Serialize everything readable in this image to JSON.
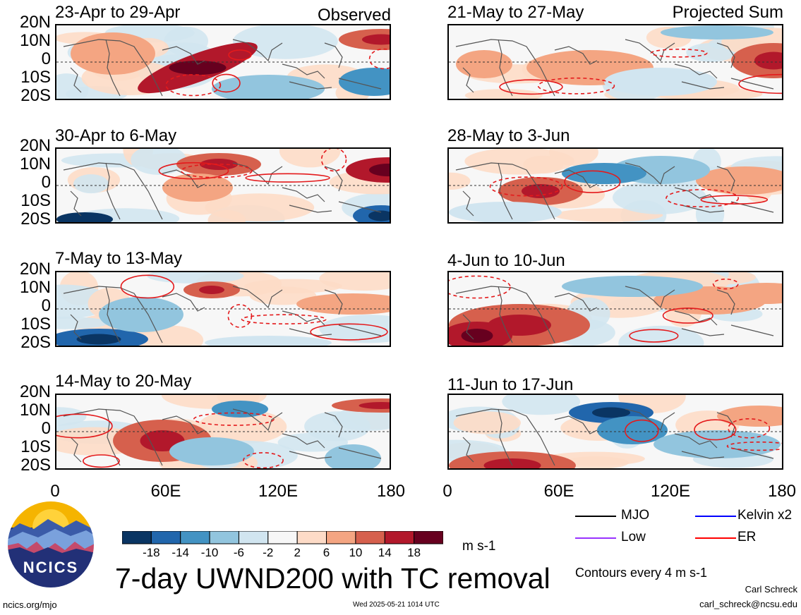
{
  "chart_data": {
    "type": "heatmap",
    "title": "7-day UWND200 with TC removal",
    "units": "m s-1",
    "contour_note": "Contours every 4 m s-1",
    "colorbar": {
      "ticks": [
        "-18",
        "-14",
        "-10",
        "-6",
        "-2",
        "2",
        "6",
        "10",
        "14",
        "18"
      ],
      "colors": [
        "#0a3563",
        "#2166ac",
        "#4393c3",
        "#92c5de",
        "#d1e5f0",
        "#f7f7f7",
        "#fddbc7",
        "#f4a582",
        "#d6604d",
        "#b2182b",
        "#67001f"
      ]
    },
    "lat_ticks": [
      "20N",
      "10N",
      "0",
      "10S",
      "20S"
    ],
    "lon_ticks": [
      "0",
      "60E",
      "120E",
      "180"
    ],
    "column_labels": [
      "Observed",
      "Projected Sum"
    ],
    "panels": [
      {
        "period": "23-Apr to 29-Apr",
        "column": "Observed"
      },
      {
        "period": "30-Apr to 6-May",
        "column": "Observed"
      },
      {
        "period": "7-May to 13-May",
        "column": "Observed"
      },
      {
        "period": "14-May to 20-May",
        "column": "Observed"
      },
      {
        "period": "21-May to 27-May",
        "column": "Projected Sum"
      },
      {
        "period": "28-May to 3-Jun",
        "column": "Projected Sum"
      },
      {
        "period": "4-Jun to 10-Jun",
        "column": "Projected Sum"
      },
      {
        "period": "11-Jun to 17-Jun",
        "column": "Projected Sum"
      }
    ],
    "legend": [
      {
        "label": "MJO",
        "color": "#000000"
      },
      {
        "label": "Kelvin x2",
        "color": "#0000ff"
      },
      {
        "label": "Low",
        "color": "#9933ff"
      },
      {
        "label": "ER",
        "color": "#ff0000"
      }
    ]
  },
  "footer": {
    "logo_text": "NCICS",
    "site": "ncics.org/mjo",
    "timestamp": "Wed 2025-05-21 1014 UTC",
    "author": "Carl Schreck",
    "email": "carl_schreck@ncsu.edu"
  }
}
